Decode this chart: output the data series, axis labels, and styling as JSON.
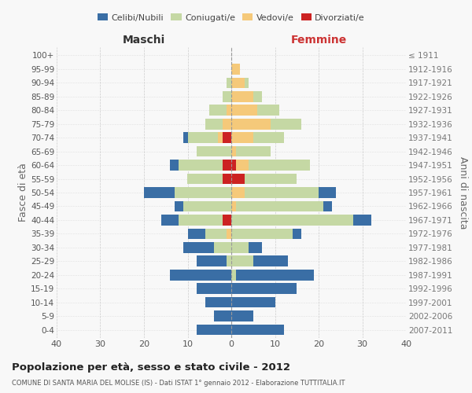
{
  "age_groups": [
    "100+",
    "95-99",
    "90-94",
    "85-89",
    "80-84",
    "75-79",
    "70-74",
    "65-69",
    "60-64",
    "55-59",
    "50-54",
    "45-49",
    "40-44",
    "35-39",
    "30-34",
    "25-29",
    "20-24",
    "15-19",
    "10-14",
    "5-9",
    "0-4"
  ],
  "birth_years": [
    "≤ 1911",
    "1912-1916",
    "1917-1921",
    "1922-1926",
    "1927-1931",
    "1932-1936",
    "1937-1941",
    "1942-1946",
    "1947-1951",
    "1952-1956",
    "1957-1961",
    "1962-1966",
    "1967-1971",
    "1972-1976",
    "1977-1981",
    "1982-1986",
    "1987-1991",
    "1992-1996",
    "1997-2001",
    "2002-2006",
    "2007-2011"
  ],
  "colors": {
    "celibe": "#3a6ea5",
    "coniugato": "#c5d8a4",
    "vedovo": "#f5c97a",
    "divorziato": "#cc2222"
  },
  "males": {
    "celibe": [
      0,
      0,
      0,
      0,
      0,
      0,
      1,
      0,
      2,
      0,
      7,
      2,
      4,
      4,
      7,
      7,
      14,
      8,
      6,
      4,
      8
    ],
    "coniugato": [
      0,
      0,
      1,
      2,
      4,
      4,
      7,
      8,
      10,
      8,
      13,
      11,
      10,
      5,
      4,
      1,
      0,
      0,
      0,
      0,
      0
    ],
    "vedovo": [
      0,
      0,
      0,
      0,
      1,
      2,
      1,
      0,
      0,
      0,
      0,
      0,
      0,
      1,
      0,
      0,
      0,
      0,
      0,
      0,
      0
    ],
    "divorziato": [
      0,
      0,
      0,
      0,
      0,
      0,
      2,
      0,
      2,
      2,
      0,
      0,
      2,
      0,
      0,
      0,
      0,
      0,
      0,
      0,
      0
    ]
  },
  "females": {
    "celibe": [
      0,
      0,
      0,
      0,
      0,
      0,
      0,
      0,
      0,
      0,
      4,
      2,
      4,
      2,
      3,
      8,
      18,
      15,
      10,
      5,
      12
    ],
    "coniugato": [
      0,
      0,
      1,
      2,
      5,
      7,
      7,
      8,
      14,
      12,
      17,
      20,
      28,
      14,
      4,
      5,
      1,
      0,
      0,
      0,
      0
    ],
    "vedovo": [
      0,
      2,
      3,
      5,
      6,
      9,
      5,
      1,
      3,
      0,
      3,
      1,
      0,
      0,
      0,
      0,
      0,
      0,
      0,
      0,
      0
    ],
    "divorziato": [
      0,
      0,
      0,
      0,
      0,
      0,
      0,
      0,
      1,
      3,
      0,
      0,
      0,
      0,
      0,
      0,
      0,
      0,
      0,
      0,
      0
    ]
  },
  "xlim": 40,
  "title": "Popolazione per età, sesso e stato civile - 2012",
  "subtitle": "COMUNE DI SANTA MARIA DEL MOLISE (IS) - Dati ISTAT 1° gennaio 2012 - Elaborazione TUTTITALIA.IT",
  "header_left": "Maschi",
  "header_right": "Femmine",
  "ylabel_left": "Fasce di età",
  "ylabel_right": "Anni di nascita",
  "bg_color": "#f8f8f8",
  "grid_color": "#cccccc",
  "legend_labels": [
    "Celibi/Nubili",
    "Coniugati/e",
    "Vedovi/e",
    "Divorziati/e"
  ]
}
